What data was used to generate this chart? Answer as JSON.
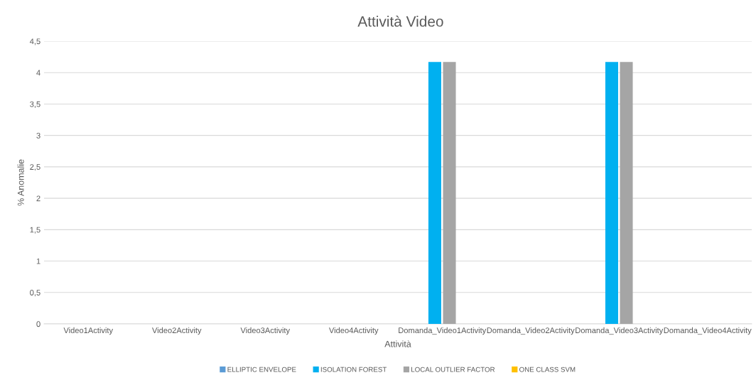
{
  "chart_data": {
    "type": "bar",
    "title": "Attività Video",
    "xlabel": "Attività",
    "ylabel": "% Anomalie",
    "categories": [
      "Video1Activity",
      "Video2Activity",
      "Video3Activity",
      "Video4Activity",
      "Domanda_Video1Activity",
      "Domanda_Video2Activity",
      "Domanda_Video3Activity",
      "Domanda_Video4Activity"
    ],
    "series": [
      {
        "name": "ELLIPTIC ENVELOPE",
        "color": "#5b9bd5",
        "values": [
          0,
          0,
          0,
          0,
          0,
          0,
          0,
          0
        ]
      },
      {
        "name": "ISOLATION FOREST",
        "color": "#00b0f0",
        "values": [
          0,
          0,
          0,
          0,
          4.17,
          0,
          4.17,
          0
        ]
      },
      {
        "name": "LOCAL OUTLIER FACTOR",
        "color": "#a5a5a5",
        "values": [
          0,
          0,
          0,
          0,
          4.17,
          0,
          4.17,
          0
        ]
      },
      {
        "name": "ONE CLASS SVM",
        "color": "#ffc000",
        "values": [
          0,
          0,
          0,
          0,
          0,
          0,
          0,
          0
        ]
      }
    ],
    "ylim": [
      0,
      4.5
    ],
    "yticks": [
      0,
      {
        "value": 0.5,
        "label": "0,5"
      },
      1,
      {
        "value": 1.5,
        "label": "1,5"
      },
      2,
      {
        "value": 2.5,
        "label": "2,5"
      },
      3,
      {
        "value": 3.5,
        "label": "3,5"
      },
      4,
      {
        "value": 4.5,
        "label": "4,5"
      }
    ],
    "grid": "y",
    "legend": "bottom"
  }
}
